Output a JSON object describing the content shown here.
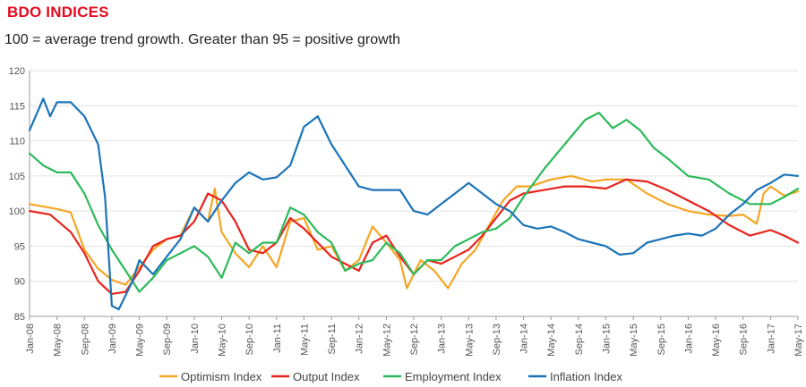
{
  "header": {
    "title": "BDO INDICES",
    "subtitle": "100 = average trend growth. Greater than 95 = positive growth"
  },
  "chart_data": {
    "type": "line",
    "title": "BDO INDICES",
    "subtitle": "100 = average trend growth. Greater than 95 = positive growth",
    "xlabel": "",
    "ylabel": "",
    "ylim": [
      85,
      120
    ],
    "yticks": [
      85,
      90,
      95,
      100,
      105,
      110,
      115,
      120
    ],
    "x_start": "2008-01",
    "x_end": "2017-05",
    "xticks": [
      "Jan-08",
      "May-08",
      "Sep-08",
      "Jan-09",
      "May-09",
      "Sep-09",
      "Jan-10",
      "May-10",
      "Sep-10",
      "Jan-11",
      "May-11",
      "Sep-11",
      "Jan-12",
      "May-12",
      "Sep-12",
      "Jan-13",
      "May-13",
      "Sep-13",
      "Jan-14",
      "May-14",
      "Sep-14",
      "Jan-15",
      "May-15",
      "Sep-15",
      "Jan-16",
      "May-16",
      "Sep-16",
      "Jan-17",
      "May-17"
    ],
    "grid": "horizontal",
    "legend_position": "bottom",
    "series": [
      {
        "name": "Optimism Index",
        "color": "#f5a623",
        "points": [
          [
            "Jan-08",
            101.0
          ],
          [
            "May-08",
            100.3
          ],
          [
            "Jul-08",
            99.8
          ],
          [
            "Sep-08",
            94.5
          ],
          [
            "Nov-08",
            91.8
          ],
          [
            "Jan-09",
            90.2
          ],
          [
            "Mar-09",
            89.5
          ],
          [
            "May-09",
            92.0
          ],
          [
            "Jul-09",
            94.5
          ],
          [
            "Sep-09",
            96.0
          ],
          [
            "Nov-09",
            96.5
          ],
          [
            "Jan-10",
            100.5
          ],
          [
            "Mar-10",
            98.5
          ],
          [
            "Apr-10",
            103.2
          ],
          [
            "May-10",
            97.0
          ],
          [
            "Jul-10",
            94.0
          ],
          [
            "Sep-10",
            92.0
          ],
          [
            "Nov-10",
            95.0
          ],
          [
            "Jan-11",
            92.0
          ],
          [
            "Mar-11",
            98.5
          ],
          [
            "May-11",
            99.0
          ],
          [
            "Jul-11",
            94.5
          ],
          [
            "Sep-11",
            95.0
          ],
          [
            "Nov-11",
            91.5
          ],
          [
            "Jan-12",
            93.0
          ],
          [
            "Mar-12",
            97.8
          ],
          [
            "May-12",
            95.5
          ],
          [
            "Jul-12",
            93.0
          ],
          [
            "Aug-12",
            89.0
          ],
          [
            "Oct-12",
            93.0
          ],
          [
            "Dec-12",
            91.5
          ],
          [
            "Feb-13",
            89.0
          ],
          [
            "Apr-13",
            92.5
          ],
          [
            "Jun-13",
            94.5
          ],
          [
            "Aug-13",
            98.0
          ],
          [
            "Oct-13",
            101.5
          ],
          [
            "Dec-13",
            103.5
          ],
          [
            "Feb-14",
            103.5
          ],
          [
            "May-14",
            104.5
          ],
          [
            "Aug-14",
            105.0
          ],
          [
            "Nov-14",
            104.2
          ],
          [
            "Jan-15",
            104.5
          ],
          [
            "Apr-15",
            104.5
          ],
          [
            "Jul-15",
            102.5
          ],
          [
            "Oct-15",
            101.0
          ],
          [
            "Jan-16",
            100.0
          ],
          [
            "Apr-16",
            99.5
          ],
          [
            "Jul-16",
            99.3
          ],
          [
            "Sep-16",
            99.5
          ],
          [
            "Nov-16",
            98.2
          ],
          [
            "Dec-16",
            102.5
          ],
          [
            "Jan-17",
            103.5
          ],
          [
            "Mar-17",
            102.2
          ],
          [
            "May-17",
            102.8
          ]
        ]
      },
      {
        "name": "Output Index",
        "color": "#e8231b",
        "points": [
          [
            "Jan-08",
            100.0
          ],
          [
            "Apr-08",
            99.5
          ],
          [
            "Jul-08",
            97.0
          ],
          [
            "Sep-08",
            94.0
          ],
          [
            "Nov-08",
            90.0
          ],
          [
            "Jan-09",
            88.2
          ],
          [
            "Mar-09",
            88.5
          ],
          [
            "May-09",
            91.5
          ],
          [
            "Jul-09",
            95.0
          ],
          [
            "Sep-09",
            96.0
          ],
          [
            "Nov-09",
            96.5
          ],
          [
            "Jan-10",
            98.5
          ],
          [
            "Mar-10",
            102.5
          ],
          [
            "May-10",
            101.5
          ],
          [
            "Jul-10",
            98.5
          ],
          [
            "Sep-10",
            94.5
          ],
          [
            "Nov-10",
            94.0
          ],
          [
            "Jan-11",
            95.5
          ],
          [
            "Mar-11",
            99.0
          ],
          [
            "May-11",
            97.5
          ],
          [
            "Jul-11",
            95.5
          ],
          [
            "Sep-11",
            93.5
          ],
          [
            "Nov-11",
            92.5
          ],
          [
            "Jan-12",
            91.5
          ],
          [
            "Mar-12",
            95.5
          ],
          [
            "May-12",
            96.5
          ],
          [
            "Jul-12",
            93.5
          ],
          [
            "Sep-12",
            91.0
          ],
          [
            "Nov-12",
            93.0
          ],
          [
            "Jan-13",
            92.5
          ],
          [
            "Mar-13",
            93.5
          ],
          [
            "May-13",
            94.5
          ],
          [
            "Jul-13",
            96.5
          ],
          [
            "Sep-13",
            99.0
          ],
          [
            "Nov-13",
            101.5
          ],
          [
            "Jan-14",
            102.5
          ],
          [
            "Apr-14",
            103.0
          ],
          [
            "Jul-14",
            103.5
          ],
          [
            "Oct-14",
            103.5
          ],
          [
            "Jan-15",
            103.2
          ],
          [
            "Apr-15",
            104.5
          ],
          [
            "Jul-15",
            104.2
          ],
          [
            "Oct-15",
            103.0
          ],
          [
            "Jan-16",
            101.5
          ],
          [
            "Apr-16",
            100.0
          ],
          [
            "Jul-16",
            98.0
          ],
          [
            "Oct-16",
            96.5
          ],
          [
            "Jan-17",
            97.3
          ],
          [
            "Mar-17",
            96.5
          ],
          [
            "May-17",
            95.5
          ]
        ]
      },
      {
        "name": "Employment Index",
        "color": "#2cba5a",
        "points": [
          [
            "Jan-08",
            108.2
          ],
          [
            "Mar-08",
            106.5
          ],
          [
            "May-08",
            105.5
          ],
          [
            "Jul-08",
            105.5
          ],
          [
            "Sep-08",
            102.5
          ],
          [
            "Nov-08",
            98.0
          ],
          [
            "Jan-09",
            94.5
          ],
          [
            "Mar-09",
            91.5
          ],
          [
            "May-09",
            88.5
          ],
          [
            "Jul-09",
            90.5
          ],
          [
            "Sep-09",
            93.0
          ],
          [
            "Nov-09",
            94.0
          ],
          [
            "Jan-10",
            95.0
          ],
          [
            "Mar-10",
            93.5
          ],
          [
            "May-10",
            90.5
          ],
          [
            "Jul-10",
            95.5
          ],
          [
            "Sep-10",
            94.0
          ],
          [
            "Nov-10",
            95.5
          ],
          [
            "Jan-11",
            95.5
          ],
          [
            "Mar-11",
            100.5
          ],
          [
            "May-11",
            99.5
          ],
          [
            "Jul-11",
            97.0
          ],
          [
            "Sep-11",
            95.5
          ],
          [
            "Nov-11",
            91.5
          ],
          [
            "Jan-12",
            92.5
          ],
          [
            "Mar-12",
            93.0
          ],
          [
            "May-12",
            95.5
          ],
          [
            "Jul-12",
            94.0
          ],
          [
            "Sep-12",
            91.0
          ],
          [
            "Nov-12",
            93.0
          ],
          [
            "Jan-13",
            93.0
          ],
          [
            "Mar-13",
            95.0
          ],
          [
            "May-13",
            96.0
          ],
          [
            "Jul-13",
            97.0
          ],
          [
            "Sep-13",
            97.5
          ],
          [
            "Nov-13",
            99.0
          ],
          [
            "Jan-14",
            102.0
          ],
          [
            "Apr-14",
            106.0
          ],
          [
            "Jul-14",
            109.5
          ],
          [
            "Oct-14",
            113.0
          ],
          [
            "Dec-14",
            114.0
          ],
          [
            "Feb-15",
            111.8
          ],
          [
            "Apr-15",
            113.0
          ],
          [
            "Jun-15",
            111.5
          ],
          [
            "Aug-15",
            109.0
          ],
          [
            "Oct-15",
            107.5
          ],
          [
            "Jan-16",
            105.0
          ],
          [
            "Apr-16",
            104.5
          ],
          [
            "Jul-16",
            102.5
          ],
          [
            "Oct-16",
            101.0
          ],
          [
            "Jan-17",
            101.0
          ],
          [
            "Mar-17",
            102.0
          ],
          [
            "May-17",
            103.2
          ]
        ]
      },
      {
        "name": "Inflation Index",
        "color": "#1b74b8",
        "points": [
          [
            "Jan-08",
            111.5
          ],
          [
            "Mar-08",
            116.0
          ],
          [
            "Apr-08",
            113.5
          ],
          [
            "May-08",
            115.5
          ],
          [
            "Jul-08",
            115.5
          ],
          [
            "Sep-08",
            113.5
          ],
          [
            "Nov-08",
            109.5
          ],
          [
            "Dec-08",
            102.0
          ],
          [
            "Jan-09",
            86.5
          ],
          [
            "Feb-09",
            86.0
          ],
          [
            "Apr-09",
            90.0
          ],
          [
            "May-09",
            93.0
          ],
          [
            "Jul-09",
            91.0
          ],
          [
            "Sep-09",
            93.5
          ],
          [
            "Nov-09",
            96.0
          ],
          [
            "Jan-10",
            100.5
          ],
          [
            "Mar-10",
            98.5
          ],
          [
            "May-10",
            101.5
          ],
          [
            "Jul-10",
            104.0
          ],
          [
            "Sep-10",
            105.5
          ],
          [
            "Nov-10",
            104.5
          ],
          [
            "Jan-11",
            104.8
          ],
          [
            "Mar-11",
            106.5
          ],
          [
            "May-11",
            112.0
          ],
          [
            "Jul-11",
            113.5
          ],
          [
            "Sep-11",
            109.5
          ],
          [
            "Nov-11",
            106.5
          ],
          [
            "Jan-12",
            103.5
          ],
          [
            "Mar-12",
            103.0
          ],
          [
            "May-12",
            103.0
          ],
          [
            "Jul-12",
            103.0
          ],
          [
            "Sep-12",
            100.0
          ],
          [
            "Nov-12",
            99.5
          ],
          [
            "Jan-13",
            101.0
          ],
          [
            "Mar-13",
            102.5
          ],
          [
            "May-13",
            104.0
          ],
          [
            "Jul-13",
            102.5
          ],
          [
            "Sep-13",
            101.0
          ],
          [
            "Nov-13",
            100.0
          ],
          [
            "Jan-14",
            98.0
          ],
          [
            "Mar-14",
            97.5
          ],
          [
            "May-14",
            97.8
          ],
          [
            "Jul-14",
            97.0
          ],
          [
            "Sep-14",
            96.0
          ],
          [
            "Nov-14",
            95.5
          ],
          [
            "Jan-15",
            95.0
          ],
          [
            "Mar-15",
            93.8
          ],
          [
            "May-15",
            94.0
          ],
          [
            "Jul-15",
            95.5
          ],
          [
            "Sep-15",
            96.0
          ],
          [
            "Nov-15",
            96.5
          ],
          [
            "Jan-16",
            96.8
          ],
          [
            "Mar-16",
            96.5
          ],
          [
            "May-16",
            97.5
          ],
          [
            "Jul-16",
            99.5
          ],
          [
            "Sep-16",
            101.0
          ],
          [
            "Nov-16",
            103.0
          ],
          [
            "Jan-17",
            104.0
          ],
          [
            "Mar-17",
            105.2
          ],
          [
            "May-17",
            105.0
          ]
        ]
      }
    ]
  }
}
